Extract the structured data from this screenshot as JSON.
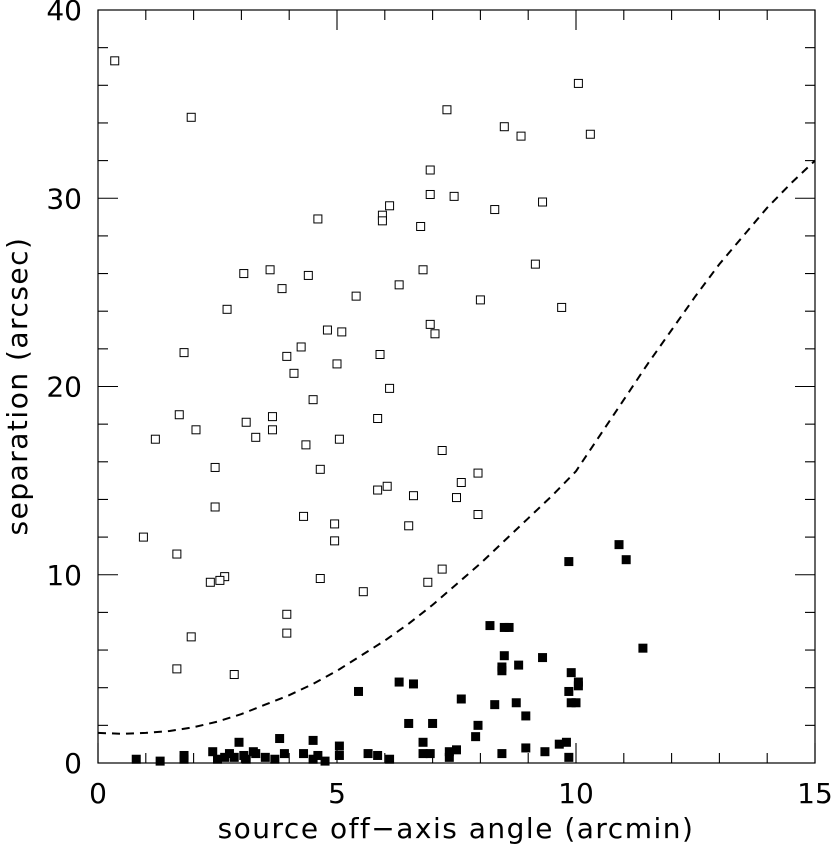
{
  "chart_data": {
    "type": "scatter",
    "title": "",
    "xlabel": "source off−axis angle (arcmin)",
    "ylabel": "separation (arcsec)",
    "xlim": [
      0,
      15
    ],
    "ylim": [
      0,
      40
    ],
    "x_ticks": [
      0,
      5,
      10,
      15
    ],
    "y_ticks": [
      0,
      10,
      20,
      30,
      40
    ],
    "x_minor_step": 1,
    "y_minor_step": 2,
    "grid": false,
    "legend": "none",
    "series": [
      {
        "marker": "open-square",
        "points": [
          [
            0.35,
            37.3
          ],
          [
            1.95,
            34.3
          ],
          [
            10.05,
            36.1
          ],
          [
            7.3,
            34.7
          ],
          [
            8.5,
            33.8
          ],
          [
            8.85,
            33.3
          ],
          [
            10.3,
            33.4
          ],
          [
            6.95,
            31.5
          ],
          [
            7.45,
            30.1
          ],
          [
            6.95,
            30.2
          ],
          [
            9.3,
            29.8
          ],
          [
            6.1,
            29.6
          ],
          [
            8.3,
            29.4
          ],
          [
            5.95,
            29.1
          ],
          [
            4.6,
            28.9
          ],
          [
            5.95,
            28.8
          ],
          [
            6.75,
            28.5
          ],
          [
            9.15,
            26.5
          ],
          [
            3.6,
            26.2
          ],
          [
            6.8,
            26.2
          ],
          [
            3.05,
            26.0
          ],
          [
            4.4,
            25.9
          ],
          [
            6.3,
            25.4
          ],
          [
            3.85,
            25.2
          ],
          [
            5.4,
            24.8
          ],
          [
            8.0,
            24.6
          ],
          [
            2.7,
            24.1
          ],
          [
            9.7,
            24.2
          ],
          [
            6.95,
            23.3
          ],
          [
            4.8,
            23.0
          ],
          [
            5.1,
            22.9
          ],
          [
            7.05,
            22.8
          ],
          [
            4.25,
            22.1
          ],
          [
            1.8,
            21.8
          ],
          [
            3.95,
            21.6
          ],
          [
            5.9,
            21.7
          ],
          [
            5.0,
            21.2
          ],
          [
            4.1,
            20.7
          ],
          [
            6.1,
            19.9
          ],
          [
            4.5,
            19.3
          ],
          [
            1.7,
            18.5
          ],
          [
            3.65,
            18.4
          ],
          [
            5.85,
            18.3
          ],
          [
            3.1,
            18.1
          ],
          [
            2.05,
            17.7
          ],
          [
            3.65,
            17.7
          ],
          [
            1.2,
            17.2
          ],
          [
            3.3,
            17.3
          ],
          [
            5.05,
            17.2
          ],
          [
            4.35,
            16.9
          ],
          [
            7.2,
            16.6
          ],
          [
            2.45,
            15.7
          ],
          [
            4.65,
            15.6
          ],
          [
            7.95,
            15.4
          ],
          [
            7.6,
            14.9
          ],
          [
            6.05,
            14.7
          ],
          [
            5.85,
            14.5
          ],
          [
            6.6,
            14.2
          ],
          [
            7.5,
            14.1
          ],
          [
            2.45,
            13.6
          ],
          [
            7.95,
            13.2
          ],
          [
            4.3,
            13.1
          ],
          [
            4.95,
            12.7
          ],
          [
            6.5,
            12.6
          ],
          [
            0.95,
            12.0
          ],
          [
            4.95,
            11.8
          ],
          [
            1.65,
            11.1
          ],
          [
            7.2,
            10.3
          ],
          [
            2.65,
            9.9
          ],
          [
            4.65,
            9.8
          ],
          [
            2.55,
            9.7
          ],
          [
            2.35,
            9.6
          ],
          [
            6.9,
            9.6
          ],
          [
            5.55,
            9.1
          ],
          [
            3.95,
            7.9
          ],
          [
            3.95,
            6.9
          ],
          [
            1.95,
            6.7
          ],
          [
            1.65,
            5.0
          ],
          [
            2.85,
            4.7
          ]
        ]
      },
      {
        "marker": "filled-square",
        "points": [
          [
            10.9,
            11.6
          ],
          [
            9.85,
            10.7
          ],
          [
            11.05,
            10.8
          ],
          [
            8.2,
            7.3
          ],
          [
            8.5,
            7.2
          ],
          [
            8.6,
            7.2
          ],
          [
            11.4,
            6.1
          ],
          [
            8.5,
            5.7
          ],
          [
            9.3,
            5.6
          ],
          [
            8.8,
            5.2
          ],
          [
            8.45,
            5.1
          ],
          [
            8.45,
            4.9
          ],
          [
            9.9,
            4.8
          ],
          [
            6.3,
            4.3
          ],
          [
            6.6,
            4.2
          ],
          [
            10.05,
            4.3
          ],
          [
            10.05,
            4.1
          ],
          [
            5.45,
            3.8
          ],
          [
            9.85,
            3.8
          ],
          [
            7.6,
            3.4
          ],
          [
            9.9,
            3.2
          ],
          [
            8.3,
            3.1
          ],
          [
            8.75,
            3.2
          ],
          [
            10.0,
            3.2
          ],
          [
            8.95,
            2.5
          ],
          [
            6.5,
            2.1
          ],
          [
            7.0,
            2.1
          ],
          [
            7.95,
            2.0
          ],
          [
            7.9,
            1.4
          ],
          [
            3.8,
            1.3
          ],
          [
            2.95,
            1.1
          ],
          [
            4.5,
            1.2
          ],
          [
            6.8,
            1.1
          ],
          [
            9.8,
            1.1
          ],
          [
            9.65,
            1.0
          ],
          [
            5.05,
            0.9
          ],
          [
            8.95,
            0.8
          ],
          [
            7.5,
            0.7
          ],
          [
            7.35,
            0.6
          ],
          [
            9.35,
            0.6
          ],
          [
            2.4,
            0.6
          ],
          [
            3.25,
            0.6
          ],
          [
            4.3,
            0.5
          ],
          [
            2.75,
            0.5
          ],
          [
            3.3,
            0.5
          ],
          [
            3.9,
            0.5
          ],
          [
            5.65,
            0.5
          ],
          [
            6.8,
            0.5
          ],
          [
            6.95,
            0.5
          ],
          [
            8.45,
            0.5
          ],
          [
            1.8,
            0.4
          ],
          [
            3.05,
            0.4
          ],
          [
            3.5,
            0.3
          ],
          [
            4.6,
            0.4
          ],
          [
            5.85,
            0.4
          ],
          [
            2.85,
            0.3
          ],
          [
            2.65,
            0.3
          ],
          [
            2.5,
            0.2
          ],
          [
            0.8,
            0.2
          ],
          [
            1.8,
            0.2
          ],
          [
            3.7,
            0.2
          ],
          [
            4.5,
            0.2
          ],
          [
            5.05,
            0.4
          ],
          [
            6.1,
            0.2
          ],
          [
            7.35,
            0.3
          ],
          [
            9.85,
            0.3
          ],
          [
            1.3,
            0.1
          ],
          [
            4.75,
            0.1
          ],
          [
            3.1,
            0.2
          ]
        ]
      },
      {
        "marker": "dashed-line",
        "points": [
          [
            0,
            1.6
          ],
          [
            0.5,
            1.55
          ],
          [
            1.0,
            1.6
          ],
          [
            1.5,
            1.7
          ],
          [
            2.0,
            1.9
          ],
          [
            2.5,
            2.2
          ],
          [
            3.0,
            2.6
          ],
          [
            3.5,
            3.1
          ],
          [
            4.0,
            3.6
          ],
          [
            4.5,
            4.2
          ],
          [
            5.0,
            4.9
          ],
          [
            5.5,
            5.7
          ],
          [
            6.0,
            6.5
          ],
          [
            6.5,
            7.4
          ],
          [
            7.0,
            8.4
          ],
          [
            7.5,
            9.5
          ],
          [
            8.0,
            10.6
          ],
          [
            8.5,
            11.8
          ],
          [
            9.0,
            13.0
          ],
          [
            9.5,
            14.2
          ],
          [
            10.0,
            15.5
          ],
          [
            10.5,
            17.4
          ],
          [
            11.0,
            19.3
          ],
          [
            11.5,
            21.2
          ],
          [
            12.0,
            23.0
          ],
          [
            12.5,
            24.8
          ],
          [
            13.0,
            26.5
          ],
          [
            13.5,
            28.0
          ],
          [
            14.0,
            29.5
          ],
          [
            14.5,
            30.8
          ],
          [
            15.0,
            32.0
          ]
        ]
      }
    ]
  }
}
